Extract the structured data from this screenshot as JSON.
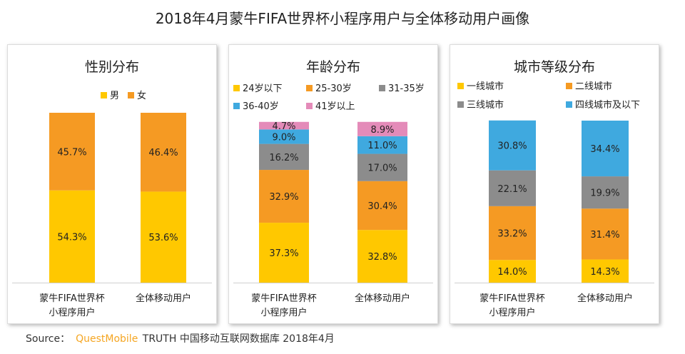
{
  "title": "2018年4月蒙牛FIFA世界杯小程序用户与全体移动用户画像",
  "source": {
    "label": "Source：",
    "brand": "QuestMobile",
    "text": "TRUTH 中国移动互联网数据库 2018年4月"
  },
  "colors": {
    "yellow": "#FFC800",
    "orange": "#F59A23",
    "gray": "#8C8C8C",
    "blue": "#3FA9DF",
    "pink": "#E48BB9"
  },
  "chart_data": [
    {
      "type": "bar",
      "stacked": true,
      "title": "性别分布",
      "categories": [
        "蒙牛FIFA世界杯\n小程序用户",
        "全体移动用户"
      ],
      "ylim": [
        0,
        100
      ],
      "legend_placement": "top",
      "series": [
        {
          "name": "男",
          "color": "#FFC800",
          "values": [
            54.3,
            53.6
          ],
          "labels": [
            "54.3%",
            "53.6%"
          ]
        },
        {
          "name": "女",
          "color": "#F59A23",
          "values": [
            45.7,
            46.4
          ],
          "labels": [
            "45.7%",
            "46.4%"
          ]
        }
      ]
    },
    {
      "type": "bar",
      "stacked": true,
      "title": "年龄分布",
      "categories": [
        "蒙牛FIFA世界杯\n小程序用户",
        "全体移动用户"
      ],
      "ylim": [
        0,
        100
      ],
      "legend_placement": "top",
      "series": [
        {
          "name": "24岁以下",
          "color": "#FFC800",
          "values": [
            37.3,
            32.8
          ],
          "labels": [
            "37.3%",
            "32.8%"
          ]
        },
        {
          "name": "25-30岁",
          "color": "#F59A23",
          "values": [
            32.9,
            30.4
          ],
          "labels": [
            "32.9%",
            "30.4%"
          ]
        },
        {
          "name": "31-35岁",
          "color": "#8C8C8C",
          "values": [
            16.2,
            17.0
          ],
          "labels": [
            "16.2%",
            "17.0%"
          ]
        },
        {
          "name": "36-40岁",
          "color": "#3FA9DF",
          "values": [
            9.0,
            11.0
          ],
          "labels": [
            "9.0%",
            "11.0%"
          ]
        },
        {
          "name": "41岁以上",
          "color": "#E48BB9",
          "values": [
            4.7,
            8.9
          ],
          "labels": [
            "4.7%",
            "8.9%"
          ]
        }
      ]
    },
    {
      "type": "bar",
      "stacked": true,
      "title": "城市等级分布",
      "categories": [
        "蒙牛FIFA世界杯\n小程序用户",
        "全体移动用户"
      ],
      "ylim": [
        0,
        100
      ],
      "legend_placement": "top",
      "series": [
        {
          "name": "一线城市",
          "color": "#FFC800",
          "values": [
            14.0,
            14.3
          ],
          "labels": [
            "14.0%",
            "14.3%"
          ]
        },
        {
          "name": "二线城市",
          "color": "#F59A23",
          "values": [
            33.2,
            31.4
          ],
          "labels": [
            "33.2%",
            "31.4%"
          ]
        },
        {
          "name": "三线城市",
          "color": "#8C8C8C",
          "values": [
            22.1,
            19.9
          ],
          "labels": [
            "22.1%",
            "19.9%"
          ]
        },
        {
          "name": "四线城市及以下",
          "color": "#3FA9DF",
          "values": [
            30.8,
            34.4
          ],
          "labels": [
            "30.8%",
            "34.4%"
          ]
        }
      ]
    }
  ]
}
